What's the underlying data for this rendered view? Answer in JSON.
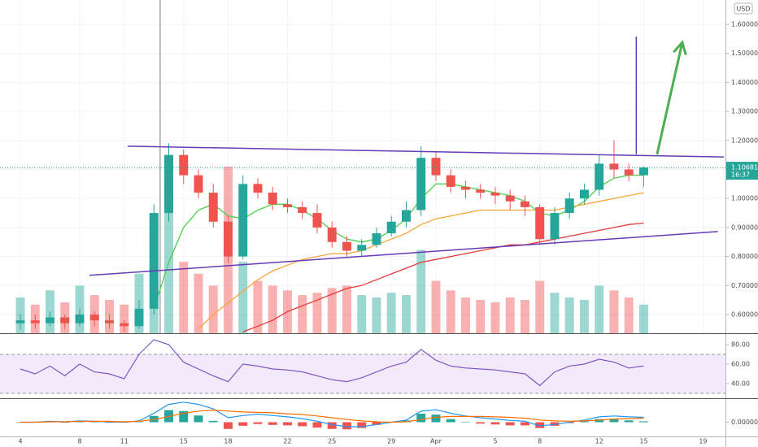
{
  "chart_data": [
    {
      "type": "candlestick",
      "currency": "USD",
      "x": [
        0,
        1,
        2,
        3,
        4,
        5,
        6,
        7,
        8,
        9,
        10,
        11,
        12,
        13,
        14,
        15,
        16,
        17,
        18,
        19,
        20,
        21,
        22,
        23,
        24,
        25,
        26,
        27,
        28,
        29,
        30,
        31,
        32,
        33,
        34,
        35,
        36,
        37,
        38,
        39,
        40,
        41,
        42
      ],
      "open": [
        0.57,
        0.58,
        0.57,
        0.59,
        0.57,
        0.6,
        0.58,
        0.57,
        0.56,
        0.62,
        0.95,
        1.15,
        1.08,
        1.02,
        0.92,
        0.8,
        1.05,
        1.02,
        0.98,
        0.97,
        0.95,
        0.9,
        0.85,
        0.82,
        0.84,
        0.88,
        0.92,
        0.96,
        1.14,
        1.08,
        1.04,
        1.03,
        1.02,
        1.01,
        0.99,
        0.97,
        0.86,
        0.95,
        1.0,
        1.03,
        1.12,
        1.1,
        1.08
      ],
      "high": [
        0.6,
        0.6,
        0.61,
        0.6,
        0.62,
        0.61,
        0.6,
        0.58,
        0.65,
        0.98,
        1.19,
        1.17,
        1.1,
        1.05,
        0.94,
        1.08,
        1.07,
        1.04,
        1.0,
        0.99,
        0.98,
        0.92,
        0.87,
        0.86,
        0.9,
        0.94,
        0.99,
        1.18,
        1.16,
        1.1,
        1.06,
        1.05,
        1.04,
        1.03,
        1.01,
        0.98,
        0.97,
        1.02,
        1.05,
        1.15,
        1.2,
        1.12,
        1.11
      ],
      "low": [
        0.55,
        0.55,
        0.56,
        0.55,
        0.56,
        0.56,
        0.55,
        0.54,
        0.55,
        0.6,
        0.92,
        1.05,
        1.0,
        0.9,
        0.78,
        0.79,
        1.0,
        0.96,
        0.95,
        0.93,
        0.88,
        0.83,
        0.8,
        0.8,
        0.83,
        0.87,
        0.9,
        0.94,
        1.06,
        1.02,
        1.0,
        1.0,
        0.98,
        0.96,
        0.94,
        0.84,
        0.84,
        0.93,
        0.98,
        1.01,
        1.07,
        1.06,
        1.04
      ],
      "close": [
        0.58,
        0.57,
        0.59,
        0.57,
        0.6,
        0.58,
        0.57,
        0.56,
        0.62,
        0.95,
        1.15,
        1.08,
        1.02,
        0.92,
        0.8,
        1.05,
        1.02,
        0.98,
        0.97,
        0.95,
        0.9,
        0.85,
        0.82,
        0.84,
        0.88,
        0.92,
        0.96,
        1.14,
        1.08,
        1.04,
        1.03,
        1.02,
        1.01,
        0.99,
        0.97,
        0.86,
        0.95,
        1.0,
        1.03,
        1.12,
        1.1,
        1.08,
        1.1068
      ],
      "up_color": "#26a69a",
      "down_color": "#ef5350",
      "series": [
        {
          "color": "#4cd04c",
          "values": [
            null,
            null,
            null,
            null,
            null,
            null,
            null,
            null,
            null,
            0.62,
            0.78,
            0.9,
            0.96,
            0.98,
            0.94,
            0.93,
            0.96,
            0.98,
            0.98,
            0.96,
            0.93,
            0.89,
            0.86,
            0.85,
            0.86,
            0.89,
            0.93,
            1.0,
            1.05,
            1.05,
            1.04,
            1.03,
            1.02,
            1.01,
            0.99,
            0.95,
            0.94,
            0.96,
            0.99,
            1.04,
            1.07,
            1.08,
            1.08
          ]
        },
        {
          "color": "#f7a53b",
          "values": [
            null,
            null,
            null,
            null,
            null,
            null,
            null,
            null,
            null,
            null,
            null,
            null,
            0.55,
            0.6,
            0.64,
            0.68,
            0.72,
            0.75,
            0.77,
            0.79,
            0.8,
            0.81,
            0.81,
            0.82,
            0.84,
            0.86,
            0.88,
            0.91,
            0.93,
            0.94,
            0.95,
            0.96,
            0.96,
            0.96,
            0.96,
            0.96,
            0.96,
            0.97,
            0.98,
            0.99,
            1.0,
            1.01,
            1.02
          ]
        },
        {
          "color": "#e53935",
          "values": [
            null,
            null,
            null,
            null,
            null,
            null,
            null,
            null,
            null,
            null,
            null,
            null,
            null,
            null,
            null,
            0.54,
            0.56,
            0.58,
            0.61,
            0.63,
            0.65,
            0.67,
            0.69,
            0.7,
            0.72,
            0.74,
            0.76,
            0.78,
            0.79,
            0.8,
            0.81,
            0.82,
            0.83,
            0.84,
            0.84,
            0.85,
            0.86,
            0.87,
            0.88,
            0.89,
            0.9,
            0.91,
            0.915
          ]
        }
      ],
      "volume": [
        150,
        120,
        180,
        130,
        200,
        160,
        140,
        120,
        250,
        500,
        600,
        300,
        250,
        200,
        700,
        300,
        220,
        200,
        180,
        160,
        170,
        190,
        200,
        160,
        150,
        170,
        160,
        350,
        220,
        180,
        150,
        140,
        130,
        150,
        140,
        220,
        170,
        150,
        140,
        200,
        180,
        150,
        120
      ],
      "volume_lim": [
        0,
        1400
      ],
      "drawings": [
        {
          "color": "#673ab7",
          "points": [
            [
              7.23,
              1.18
            ],
            [
              47.4,
              1.143
            ]
          ]
        },
        {
          "color": "#673ab7",
          "points": [
            [
              4.66,
              0.735
            ],
            [
              47.0,
              0.886
            ]
          ]
        },
        {
          "color": "#673ab7",
          "points": [
            [
              41.5,
              1.558
            ],
            [
              41.5,
              1.152
            ]
          ]
        },
        {
          "color": "#4caf50",
          "points": [
            [
              42.9,
              1.152
            ],
            [
              44.6,
              1.538
            ]
          ],
          "arrow": true
        }
      ],
      "vertical_lines": [
        9.42
      ],
      "last_price": 1.10681,
      "last_time": "16:37",
      "xlim": [
        -1.37,
        47.4
      ],
      "ylim": [
        0.5356,
        1.684
      ],
      "yticks": [
        {
          "value": 0.6,
          "label": "0.60000"
        },
        {
          "value": 0.7,
          "label": "0.70000"
        },
        {
          "value": 0.8,
          "label": "0.80000"
        },
        {
          "value": 0.9,
          "label": "0.90000"
        },
        {
          "value": 1.0,
          "label": "1.00000"
        },
        {
          "value": 1.1,
          "label": "1.10000"
        },
        {
          "value": 1.2,
          "label": "1.20000"
        },
        {
          "value": 1.3,
          "label": "1.30000"
        },
        {
          "value": 1.4,
          "label": "1.40000"
        },
        {
          "value": 1.5,
          "label": "1.50000"
        },
        {
          "value": 1.6,
          "label": "1.60000"
        }
      ],
      "xticks": [
        {
          "value": 0,
          "label": "4"
        },
        {
          "value": 4,
          "label": "8"
        },
        {
          "value": 7,
          "label": "11"
        },
        {
          "value": 11,
          "label": "15"
        },
        {
          "value": 14,
          "label": "18"
        },
        {
          "value": 18,
          "label": "22"
        },
        {
          "value": 21,
          "label": "25"
        },
        {
          "value": 25,
          "label": "29"
        },
        {
          "value": 28,
          "label": "Apr"
        },
        {
          "value": 32,
          "label": "5"
        },
        {
          "value": 35,
          "label": "8"
        },
        {
          "value": 39,
          "label": "12"
        },
        {
          "value": 42,
          "label": "15"
        },
        {
          "value": 46,
          "label": "19"
        }
      ],
      "grid": true
    },
    {
      "type": "line",
      "color": "#7e57c2",
      "band": [
        30,
        70
      ],
      "band_color": "#e9dcf7",
      "values": [
        55,
        50,
        58,
        48,
        60,
        52,
        50,
        45,
        70,
        85,
        80,
        62,
        55,
        48,
        42,
        60,
        58,
        55,
        54,
        52,
        48,
        44,
        42,
        46,
        52,
        58,
        62,
        75,
        64,
        58,
        56,
        55,
        54,
        52,
        50,
        38,
        52,
        58,
        60,
        65,
        62,
        56,
        58
      ],
      "ylim": [
        25,
        90
      ],
      "yticks": [
        {
          "value": 80,
          "label": "80.00"
        },
        {
          "value": 60,
          "label": "60.00"
        },
        {
          "value": 40,
          "label": "40.00"
        }
      ]
    },
    {
      "type": "macd",
      "series": [
        {
          "color": "#2196f3",
          "values": [
            0.0,
            0.0,
            0.002,
            0.001,
            0.003,
            0.002,
            0.001,
            0.0,
            0.003,
            0.02,
            0.04,
            0.045,
            0.04,
            0.03,
            0.01,
            0.015,
            0.018,
            0.015,
            0.012,
            0.008,
            0.002,
            -0.005,
            -0.01,
            -0.01,
            -0.005,
            0.0,
            0.005,
            0.025,
            0.028,
            0.02,
            0.014,
            0.01,
            0.007,
            0.004,
            0.002,
            -0.008,
            -0.005,
            0.0,
            0.005,
            0.012,
            0.014,
            0.012,
            0.011
          ]
        },
        {
          "color": "#ff6d00",
          "values": [
            0,
            0,
            0.001,
            0.001,
            0.002,
            0.002,
            0.002,
            0.001,
            0.002,
            0.006,
            0.013,
            0.02,
            0.025,
            0.027,
            0.025,
            0.023,
            0.022,
            0.021,
            0.019,
            0.017,
            0.014,
            0.01,
            0.006,
            0.003,
            0.001,
            0.0,
            0.001,
            0.006,
            0.011,
            0.013,
            0.013,
            0.013,
            0.012,
            0.011,
            0.009,
            0.005,
            0.003,
            0.002,
            0.003,
            0.005,
            0.007,
            0.008,
            0.009
          ]
        }
      ],
      "histogram": [
        0,
        0,
        0.001,
        0,
        0.001,
        0,
        -0.001,
        -0.001,
        0.001,
        0.014,
        0.027,
        0.025,
        0.015,
        0.003,
        -0.015,
        -0.008,
        -0.004,
        -0.006,
        -0.007,
        -0.009,
        -0.012,
        -0.015,
        -0.016,
        -0.013,
        -0.006,
        0,
        0.004,
        0.019,
        0.017,
        0.007,
        0.001,
        -0.003,
        -0.005,
        -0.007,
        -0.007,
        -0.013,
        -0.008,
        -0.002,
        0.002,
        0.007,
        0.007,
        0.004,
        0.002
      ],
      "up_color": "#26a69a",
      "down_color": "#ef5350",
      "ylim": [
        -0.03,
        0.05
      ],
      "yticks": [
        {
          "value": 0,
          "label": "0.00000"
        }
      ]
    }
  ]
}
